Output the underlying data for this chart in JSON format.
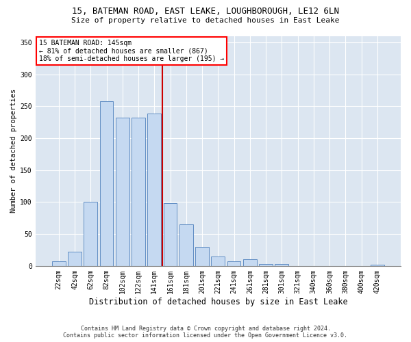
{
  "title1": "15, BATEMAN ROAD, EAST LEAKE, LOUGHBOROUGH, LE12 6LN",
  "title2": "Size of property relative to detached houses in East Leake",
  "xlabel": "Distribution of detached houses by size in East Leake",
  "ylabel": "Number of detached properties",
  "footnote1": "Contains HM Land Registry data © Crown copyright and database right 2024.",
  "footnote2": "Contains public sector information licensed under the Open Government Licence v3.0.",
  "annotation_line1": "15 BATEMAN ROAD: 145sqm",
  "annotation_line2": "← 81% of detached houses are smaller (867)",
  "annotation_line3": "18% of semi-detached houses are larger (195) →",
  "bar_labels": [
    "22sqm",
    "42sqm",
    "62sqm",
    "82sqm",
    "102sqm",
    "122sqm",
    "141sqm",
    "161sqm",
    "181sqm",
    "201sqm",
    "221sqm",
    "241sqm",
    "261sqm",
    "281sqm",
    "301sqm",
    "321sqm",
    "340sqm",
    "360sqm",
    "380sqm",
    "400sqm",
    "420sqm"
  ],
  "bar_values": [
    7,
    22,
    100,
    258,
    232,
    232,
    238,
    98,
    65,
    30,
    15,
    7,
    10,
    3,
    3,
    0,
    0,
    0,
    0,
    0,
    2
  ],
  "bar_color": "#c5d9f1",
  "bar_edge_color": "#4f81bd",
  "vline_color": "#cc0000",
  "vline_x": 6.5,
  "background_color": "#dce6f1",
  "grid_color": "#ffffff",
  "fig_bg": "#ffffff",
  "ylim": [
    0,
    360
  ],
  "yticks": [
    0,
    50,
    100,
    150,
    200,
    250,
    300,
    350
  ],
  "title1_fontsize": 9.0,
  "title2_fontsize": 8.0,
  "xlabel_fontsize": 8.5,
  "ylabel_fontsize": 7.5,
  "tick_fontsize": 7.0,
  "annot_fontsize": 7.0,
  "footnote_fontsize": 6.0
}
